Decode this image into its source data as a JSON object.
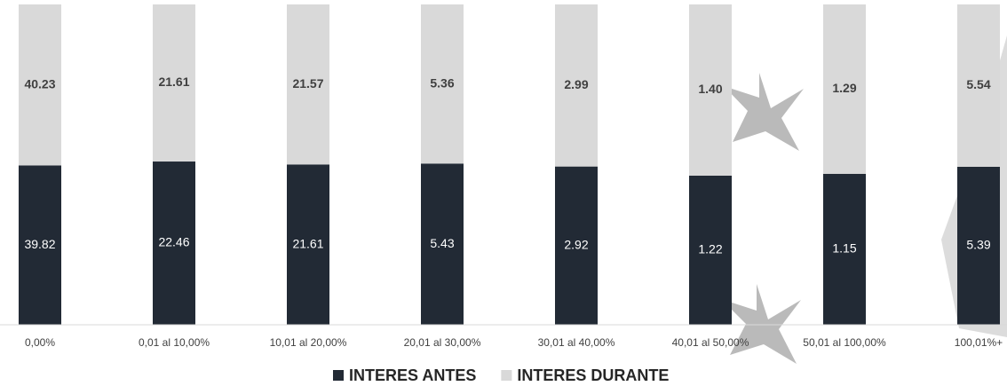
{
  "chart_data": {
    "type": "bar",
    "stacked": "percent",
    "categories": [
      "0,00%",
      "0,01 al 10,00%",
      "10,01 al 20,00%",
      "20,01 al 30,00%",
      "30,01 al 40,00%",
      "40,01 al 50,00%",
      "50,01 al 100,00%",
      "100,01%+"
    ],
    "series": [
      {
        "name": "INTERES ANTES",
        "color": "#222a35",
        "values": [
          39.82,
          22.46,
          21.61,
          5.43,
          2.92,
          1.22,
          1.15,
          5.39
        ],
        "value_labels": [
          "39.82",
          "22.46",
          "21.61",
          "5.43",
          "2.92",
          "1.22",
          "1.15",
          "5.39"
        ]
      },
      {
        "name": "INTERES DURANTE",
        "color": "#d9d9d9",
        "values": [
          40.23,
          21.61,
          21.57,
          5.36,
          2.99,
          1.4,
          1.29,
          5.54
        ],
        "value_labels": [
          "40.23",
          "21.61",
          "21.57",
          "5.36",
          "2.99",
          "1.40",
          "1.29",
          "5.54"
        ]
      }
    ],
    "legend": "bottom"
  }
}
